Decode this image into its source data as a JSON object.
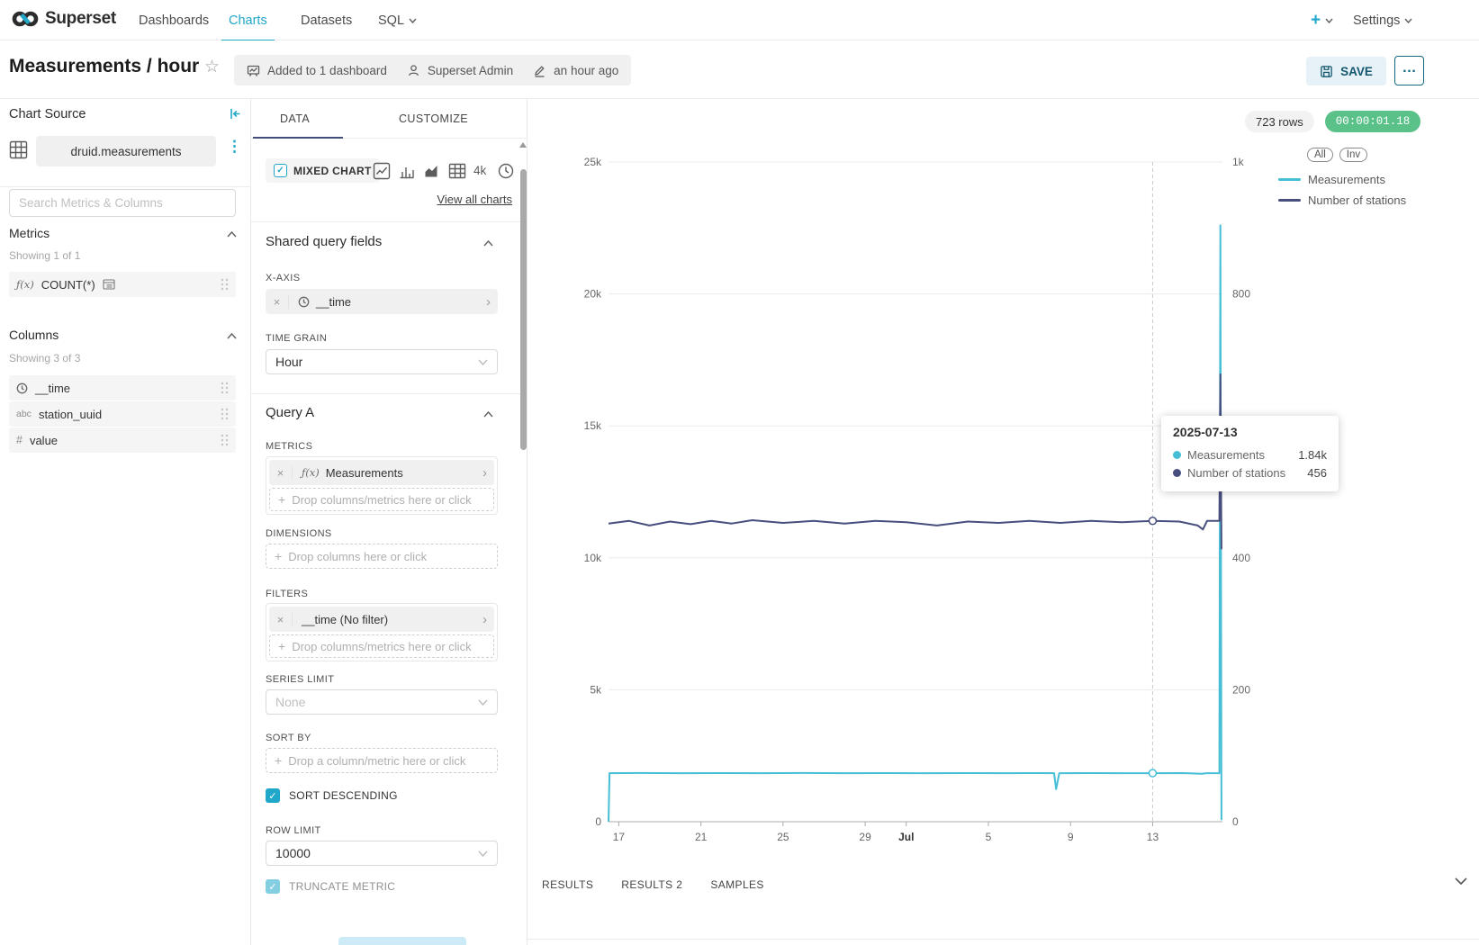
{
  "colors": {
    "accent": "#20A7C9",
    "tab_ink_bar": "#444E7C",
    "series_measurements": "#45BED6",
    "series_stations": "#484E7D",
    "timer_green": "#5AC189"
  },
  "icons": {
    "close": "×",
    "chevron_right": "›",
    "more": "…",
    "star": "☆",
    "fx": "ƒ(x)",
    "abc": "abc",
    "hash": "#",
    "plus": "+",
    "dots": "⋮",
    "check": "✓"
  },
  "navbar": {
    "brand": "Superset",
    "items": [
      {
        "label": "Dashboards"
      },
      {
        "label": "Charts"
      },
      {
        "label": "Datasets"
      },
      {
        "label": "SQL"
      }
    ],
    "settings": "Settings"
  },
  "header": {
    "title": "Measurements / hour",
    "meta": [
      {
        "label": "Added to 1 dashboard"
      },
      {
        "label": "Superset Admin"
      },
      {
        "label": "an hour ago"
      }
    ],
    "save": "SAVE"
  },
  "chart_source": {
    "title": "Chart Source",
    "dataset": "druid.measurements",
    "search_placeholder": "Search Metrics & Columns",
    "metrics": {
      "title": "Metrics",
      "count": "Showing 1 of 1",
      "items": [
        {
          "label": "COUNT(*)"
        }
      ]
    },
    "columns": {
      "title": "Columns",
      "count": "Showing 3 of 3",
      "items": [
        {
          "label": "__time"
        },
        {
          "label": "station_uuid"
        },
        {
          "label": "value"
        }
      ]
    }
  },
  "controls": {
    "tabs": [
      {
        "label": "DATA"
      },
      {
        "label": "CUSTOMIZE"
      }
    ],
    "viz_switcher": {
      "selected": "MIXED CHART",
      "resolution_label": "4k",
      "view_all": "View all charts"
    },
    "shared": {
      "title": "Shared query fields",
      "x_axis": {
        "label": "X-AXIS",
        "value": "__time"
      },
      "time_grain": {
        "label": "TIME GRAIN",
        "value": "Hour"
      }
    },
    "query_a": {
      "title": "Query A",
      "metrics": {
        "label": "METRICS",
        "value": "Measurements",
        "drop": "Drop columns/metrics here or click"
      },
      "dimensions": {
        "label": "DIMENSIONS",
        "drop": "Drop columns here or click"
      },
      "filters": {
        "label": "FILTERS",
        "value": "__time (No filter)",
        "drop": "Drop columns/metrics here or click"
      },
      "series_limit": {
        "label": "SERIES LIMIT",
        "placeholder": "None"
      },
      "sort_by": {
        "label": "SORT BY",
        "drop": "Drop a column/metric here or click"
      },
      "sort_descending": "SORT DESCENDING",
      "row_limit": {
        "label": "ROW LIMIT",
        "value": "10000"
      },
      "truncate_metric": "TRUNCATE METRIC"
    }
  },
  "chart": {
    "rows_badge": "723 rows",
    "timer": "00:00:01.18",
    "legend_all": "All",
    "legend_inv": "Inv",
    "legend": [
      {
        "label": "Measurements"
      },
      {
        "label": "Number of stations"
      }
    ],
    "tooltip": {
      "date": "2025-07-13",
      "rows": [
        {
          "name": "Measurements",
          "value": "1.84k"
        },
        {
          "name": "Number of stations",
          "value": "456"
        }
      ]
    }
  },
  "results": {
    "tabs": [
      {
        "label": "RESULTS"
      },
      {
        "label": "RESULTS 2"
      },
      {
        "label": "SAMPLES"
      }
    ]
  },
  "chart_data": {
    "type": "line",
    "title": "Measurements / hour",
    "x_axis": {
      "start_date": "2025-06-16",
      "end_date": "2025-07-16",
      "domain_days": [
        0.5,
        30.4
      ],
      "ticks": [
        "17",
        "21",
        "25",
        "29",
        "Jul",
        "5",
        "9",
        "13"
      ],
      "tick_positions_days": [
        1,
        5,
        9,
        13,
        15,
        19,
        23,
        27
      ]
    },
    "y_axis_left": {
      "range": [
        0,
        25000
      ],
      "ticks": [
        "0",
        "5k",
        "10k",
        "15k",
        "20k",
        "25k"
      ]
    },
    "y_axis_right": {
      "range": [
        0,
        1000
      ],
      "ticks": [
        "0",
        "200",
        "400",
        "600",
        "800",
        "1k"
      ]
    },
    "grid": true,
    "legend_position": "top-right",
    "series": [
      {
        "name": "Measurements",
        "axis": "left",
        "color": "#45BED6",
        "points": [
          [
            0.5,
            0
          ],
          [
            0.55,
            1840
          ],
          [
            2,
            1846
          ],
          [
            4,
            1838
          ],
          [
            6,
            1843
          ],
          [
            8,
            1840
          ],
          [
            10,
            1844
          ],
          [
            12,
            1839
          ],
          [
            14,
            1842
          ],
          [
            16,
            1840
          ],
          [
            18,
            1843
          ],
          [
            20,
            1839
          ],
          [
            21.5,
            1841
          ],
          [
            22.2,
            1838
          ],
          [
            22.3,
            1230
          ],
          [
            22.45,
            1838
          ],
          [
            24,
            1842
          ],
          [
            25.5,
            1839
          ],
          [
            27,
            1840
          ],
          [
            28.5,
            1842
          ],
          [
            29.4,
            1815
          ],
          [
            29.6,
            1840
          ],
          [
            30.25,
            1840
          ],
          [
            30.3,
            22600
          ],
          [
            30.35,
            60
          ]
        ]
      },
      {
        "name": "Number of stations",
        "axis": "right",
        "color": "#484E7D",
        "points": [
          [
            0.5,
            452
          ],
          [
            1.5,
            456
          ],
          [
            2.5,
            449
          ],
          [
            3.5,
            455
          ],
          [
            4.5,
            451
          ],
          [
            5.5,
            456
          ],
          [
            6.5,
            452
          ],
          [
            7.5,
            457
          ],
          [
            9,
            453
          ],
          [
            10.5,
            456
          ],
          [
            12,
            452
          ],
          [
            13.5,
            456
          ],
          [
            15,
            454
          ],
          [
            16.5,
            449
          ],
          [
            18,
            455
          ],
          [
            19.5,
            453
          ],
          [
            21,
            456
          ],
          [
            22.5,
            453
          ],
          [
            24,
            456
          ],
          [
            25.5,
            454
          ],
          [
            27,
            456
          ],
          [
            28.3,
            455
          ],
          [
            29.2,
            449
          ],
          [
            29.45,
            443
          ],
          [
            29.65,
            456
          ],
          [
            30.25,
            456
          ],
          [
            30.3,
            678
          ],
          [
            30.35,
            413
          ]
        ]
      }
    ],
    "crosshair": {
      "day": 27,
      "date": "2025-07-13",
      "values": {
        "Measurements": 1840,
        "Number of stations": 456
      }
    }
  }
}
